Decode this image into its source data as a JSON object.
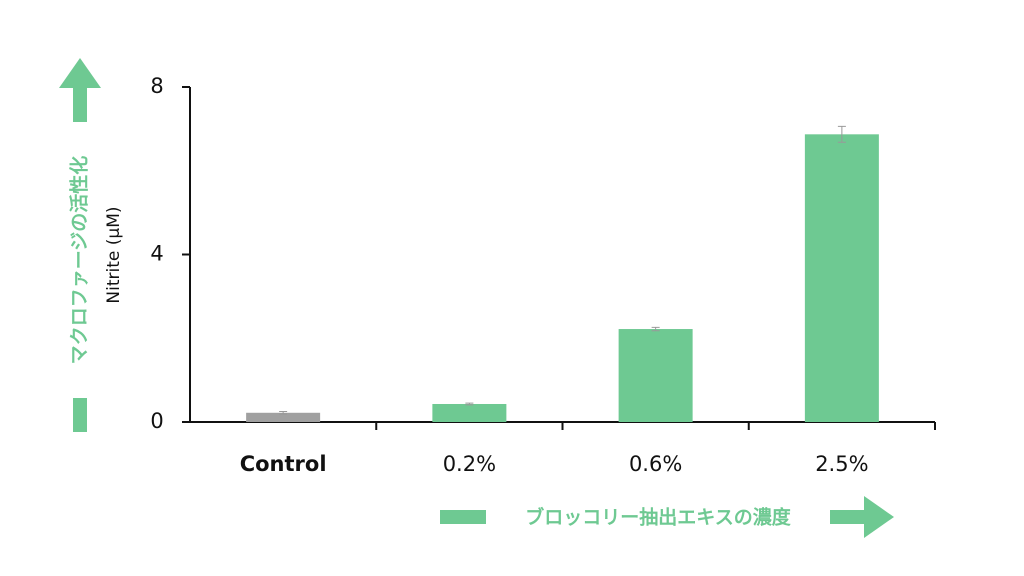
{
  "chart_data": {
    "type": "bar",
    "y_label": "Nitrite (μM)",
    "y_annotation": "マクロファージの活性化",
    "x_annotation": "ブロッコリー抽出エキスの濃度",
    "categories": [
      "Control",
      "0.2%",
      "0.6%",
      "2.5%"
    ],
    "values": [
      0.22,
      0.43,
      2.22,
      6.87
    ],
    "errors": [
      0.03,
      0.02,
      0.04,
      0.19
    ],
    "colors": [
      "#a0a0a0",
      "#6ec992",
      "#6ec992",
      "#6ec992"
    ],
    "ylim": [
      0,
      8
    ],
    "yticks": [
      0,
      4,
      8
    ]
  }
}
